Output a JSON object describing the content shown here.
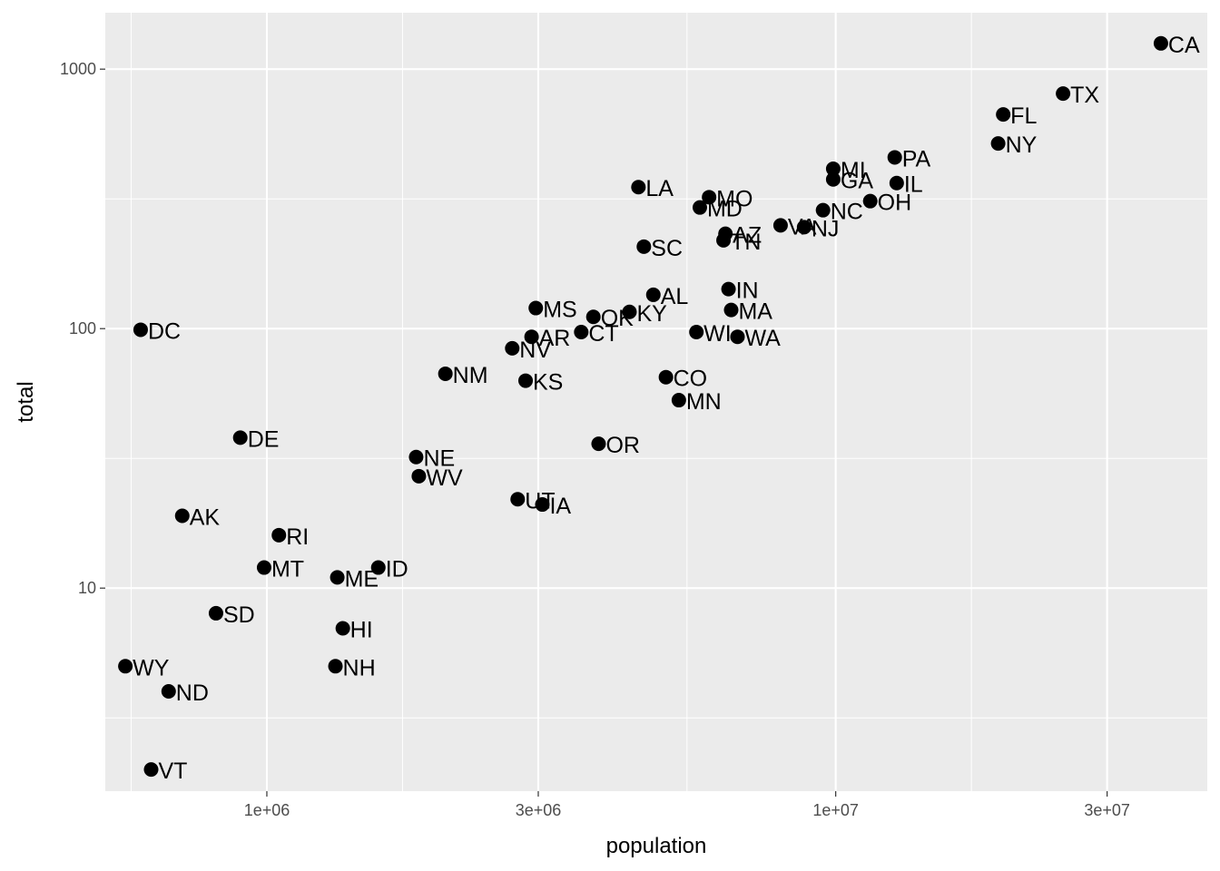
{
  "chart_data": {
    "type": "scatter",
    "title": "",
    "xlabel": "population",
    "ylabel": "total",
    "x_scale": "log10",
    "y_scale": "log10",
    "xlim": [
      520000,
      45000000
    ],
    "ylim": [
      1.65,
      1650
    ],
    "x_ticks": [
      {
        "value": 1000000,
        "label": "1e+06"
      },
      {
        "value": 3000000,
        "label": "3e+06"
      },
      {
        "value": 10000000,
        "label": "1e+07"
      },
      {
        "value": 30000000,
        "label": "3e+07"
      }
    ],
    "y_ticks": [
      {
        "value": 10,
        "label": "10"
      },
      {
        "value": 100,
        "label": "100"
      },
      {
        "value": 1000,
        "label": "1000"
      }
    ],
    "grid": true,
    "colors": {
      "panel": "#ebebeb",
      "grid": "#ffffff",
      "point": "#000000",
      "text": "#000000",
      "tick_text": "#4d4d4d"
    },
    "points": [
      {
        "label": "CA",
        "x": 37300000,
        "y": 1257
      },
      {
        "label": "TX",
        "x": 25100000,
        "y": 805
      },
      {
        "label": "FL",
        "x": 19700000,
        "y": 669
      },
      {
        "label": "NY",
        "x": 19300000,
        "y": 517
      },
      {
        "label": "PA",
        "x": 12700000,
        "y": 457
      },
      {
        "label": "MI",
        "x": 9900000,
        "y": 413
      },
      {
        "label": "GA",
        "x": 9900000,
        "y": 376
      },
      {
        "label": "IL",
        "x": 12800000,
        "y": 364
      },
      {
        "label": "LA",
        "x": 4500000,
        "y": 351
      },
      {
        "label": "MO",
        "x": 5990000,
        "y": 321
      },
      {
        "label": "OH",
        "x": 11500000,
        "y": 310
      },
      {
        "label": "MD",
        "x": 5770000,
        "y": 293
      },
      {
        "label": "NC",
        "x": 9500000,
        "y": 286
      },
      {
        "label": "VA",
        "x": 8000000,
        "y": 250
      },
      {
        "label": "NJ",
        "x": 8800000,
        "y": 246
      },
      {
        "label": "AZ",
        "x": 6400000,
        "y": 232
      },
      {
        "label": "TN",
        "x": 6350000,
        "y": 219
      },
      {
        "label": "SC",
        "x": 4600000,
        "y": 207
      },
      {
        "label": "IN",
        "x": 6480000,
        "y": 142
      },
      {
        "label": "AL",
        "x": 4780000,
        "y": 135
      },
      {
        "label": "MS",
        "x": 2970000,
        "y": 120
      },
      {
        "label": "MA",
        "x": 6550000,
        "y": 118
      },
      {
        "label": "KY",
        "x": 4340000,
        "y": 116
      },
      {
        "label": "OK",
        "x": 3750000,
        "y": 111
      },
      {
        "label": "DC",
        "x": 600000,
        "y": 99
      },
      {
        "label": "CT",
        "x": 3570000,
        "y": 97
      },
      {
        "label": "WI",
        "x": 5690000,
        "y": 97
      },
      {
        "label": "WA",
        "x": 6720000,
        "y": 93
      },
      {
        "label": "AR",
        "x": 2920000,
        "y": 93
      },
      {
        "label": "NV",
        "x": 2700000,
        "y": 84
      },
      {
        "label": "NM",
        "x": 2060000,
        "y": 67
      },
      {
        "label": "CO",
        "x": 5030000,
        "y": 65
      },
      {
        "label": "KS",
        "x": 2850000,
        "y": 63
      },
      {
        "label": "MN",
        "x": 5300000,
        "y": 53
      },
      {
        "label": "DE",
        "x": 898000,
        "y": 38
      },
      {
        "label": "OR",
        "x": 3830000,
        "y": 36
      },
      {
        "label": "NE",
        "x": 1830000,
        "y": 32
      },
      {
        "label": "WV",
        "x": 1850000,
        "y": 27
      },
      {
        "label": "UT",
        "x": 2760000,
        "y": 22
      },
      {
        "label": "IA",
        "x": 3050000,
        "y": 21
      },
      {
        "label": "AK",
        "x": 710000,
        "y": 19
      },
      {
        "label": "RI",
        "x": 1050000,
        "y": 16
      },
      {
        "label": "MT",
        "x": 989000,
        "y": 12
      },
      {
        "label": "ID",
        "x": 1570000,
        "y": 12
      },
      {
        "label": "ME",
        "x": 1330000,
        "y": 11
      },
      {
        "label": "SD",
        "x": 814000,
        "y": 8
      },
      {
        "label": "HI",
        "x": 1360000,
        "y": 7
      },
      {
        "label": "NH",
        "x": 1320000,
        "y": 5
      },
      {
        "label": "WY",
        "x": 564000,
        "y": 5
      },
      {
        "label": "ND",
        "x": 672000,
        "y": 4
      },
      {
        "label": "VT",
        "x": 626000,
        "y": 2
      }
    ]
  }
}
